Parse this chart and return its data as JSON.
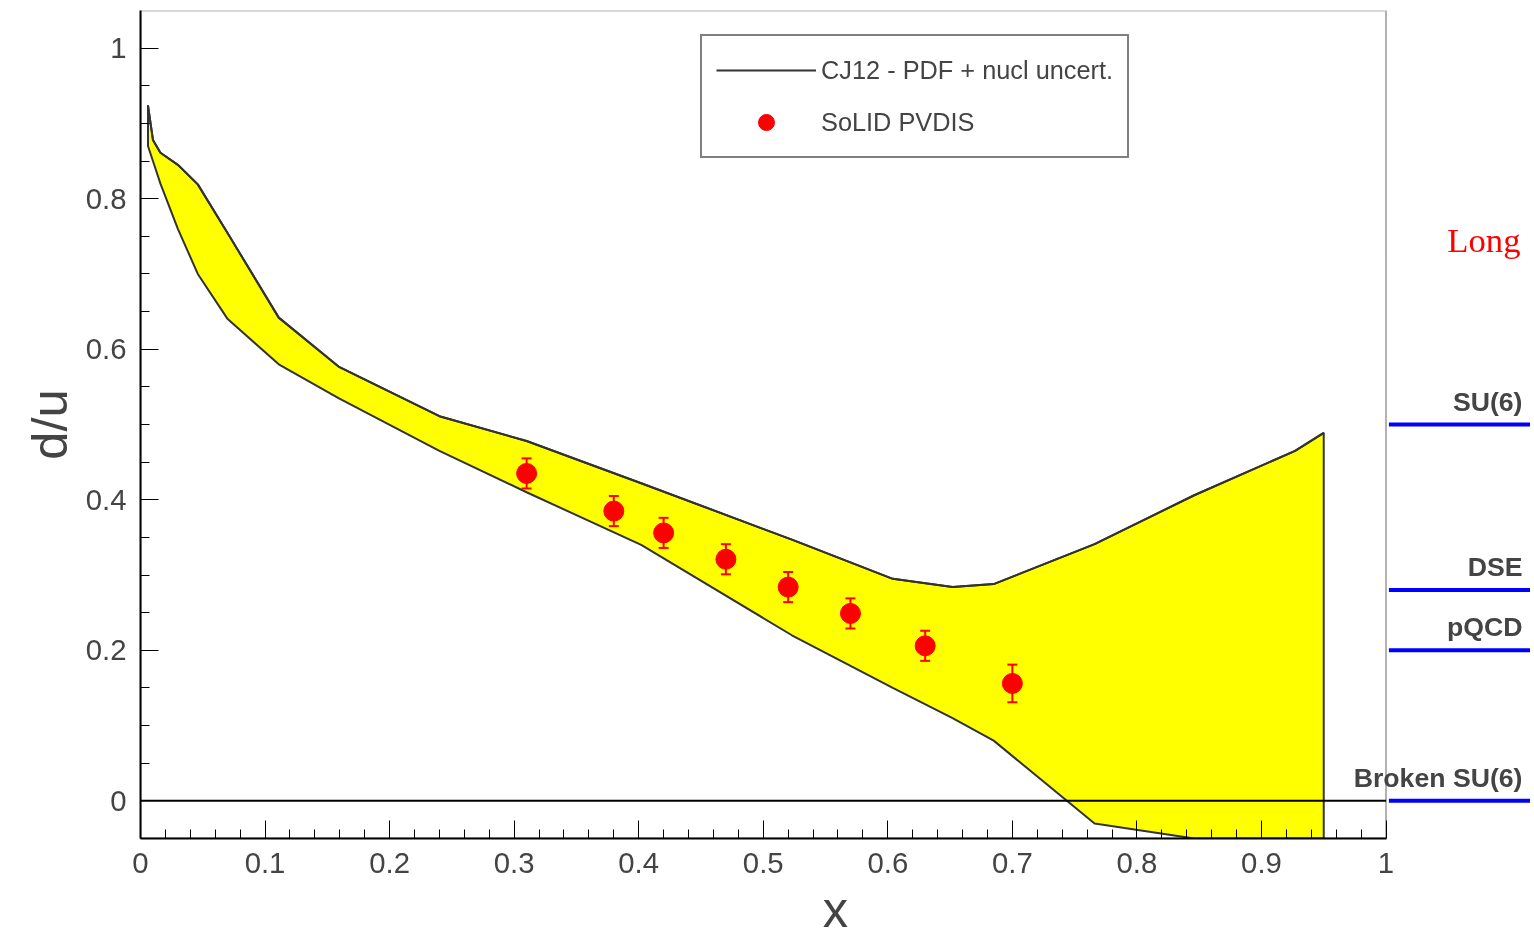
{
  "chart_data": {
    "type": "scatter",
    "xlabel": "x",
    "ylabel": "d/u",
    "xlim": [
      0,
      1
    ],
    "ylim": [
      -0.05,
      1.05
    ],
    "xticks": [
      0,
      0.1,
      0.2,
      0.3,
      0.4,
      0.5,
      0.6,
      0.7,
      0.8,
      0.9,
      1
    ],
    "yticks": [
      0,
      0.2,
      0.4,
      0.6,
      0.8,
      1
    ],
    "grid": false,
    "legend": "top right",
    "marker": "circle",
    "series": [
      {
        "name": "CJ12 - PDF + nucl uncert.",
        "type": "line",
        "marker": "none",
        "color": "#333333",
        "x": [
          0.006,
          0.01,
          0.016,
          0.03,
          0.046,
          0.07,
          0.111,
          0.159,
          0.24,
          0.31,
          0.402,
          0.523,
          0.604,
          0.652,
          0.685,
          0.766,
          0.846,
          0.927,
          0.95
        ],
        "values": [
          0.924,
          0.878,
          0.861,
          0.845,
          0.819,
          0.754,
          0.642,
          0.577,
          0.511,
          0.478,
          0.422,
          0.347,
          0.295,
          0.284,
          0.288,
          0.341,
          0.406,
          0.465,
          0.489
        ],
        "lower": [
          0.87,
          0.85,
          0.82,
          0.76,
          0.7,
          0.64,
          0.58,
          0.535,
          0.465,
          0.41,
          0.34,
          0.22,
          0.15,
          0.11,
          0.08,
          -0.03,
          -0.05,
          -0.05,
          -0.05
        ],
        "upper": [
          0.924,
          0.878,
          0.861,
          0.845,
          0.819,
          0.754,
          0.642,
          0.577,
          0.511,
          0.478,
          0.422,
          0.347,
          0.295,
          0.284,
          0.288,
          0.341,
          0.406,
          0.465,
          0.489
        ]
      },
      {
        "name": "SoLID PVDIS",
        "color": "#ff0000",
        "x": [
          0.31,
          0.38,
          0.42,
          0.47,
          0.52,
          0.57,
          0.63,
          0.7
        ],
        "values": [
          0.435,
          0.385,
          0.356,
          0.321,
          0.284,
          0.249,
          0.206,
          0.156
        ],
        "errors": [
          0.02,
          0.02,
          0.02,
          0.02,
          0.02,
          0.02,
          0.02,
          0.025
        ]
      }
    ],
    "ref_lines": [
      {
        "axis": "y",
        "value": 0,
        "color": "#000000"
      },
      {
        "axis": "y",
        "value": 0.5,
        "label": "SU(6)",
        "color": "#0000ff"
      },
      {
        "axis": "y",
        "value": 0.28,
        "label": "DSE",
        "color": "#0000ff"
      },
      {
        "axis": "y",
        "value": 0.2,
        "label": "pQCD",
        "color": "#0000ff"
      },
      {
        "axis": "y",
        "value": 0,
        "label": "Broken SU(6)",
        "color": "#0000ff"
      }
    ],
    "annotations": [
      "Long"
    ]
  }
}
